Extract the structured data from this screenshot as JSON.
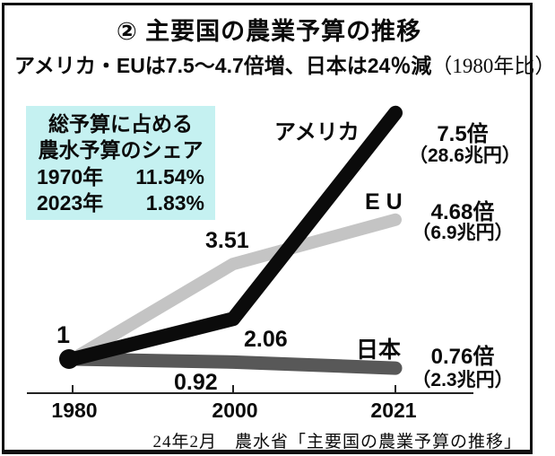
{
  "header": {
    "title": "② 主要国の農業予算の推移",
    "subtitle": "アメリカ・EUは7.5〜4.7倍増、日本は24％減",
    "subtitle_note": "（1980年比）"
  },
  "info_box": {
    "bg_color": "#c5f1f1",
    "heading_line1": "総予算に占める",
    "heading_line2": "農水予算のシェア",
    "rows": [
      {
        "year": "1970年",
        "value": "11.54%"
      },
      {
        "year": "2023年",
        "value": "1.83%"
      }
    ]
  },
  "chart_data": {
    "type": "line",
    "x": [
      1980,
      2000,
      2021
    ],
    "x_tick_labels": [
      "1980",
      "2000",
      "2021"
    ],
    "ylim": [
      0,
      8
    ],
    "grid": false,
    "baseline_value": 1,
    "legend_position": "inline-labels",
    "series": [
      {
        "name": "アメリカ",
        "values": [
          1,
          2.06,
          7.5
        ],
        "color": "#0b0b0b",
        "end_label": "7.5倍",
        "end_amount": "（28.6兆円）"
      },
      {
        "name": "EU",
        "values": [
          1,
          3.51,
          4.68
        ],
        "color": "#c4c4c4",
        "end_label": "4.68倍",
        "end_amount": "（6.9兆円）"
      },
      {
        "name": "日本",
        "values": [
          1,
          0.92,
          0.76
        ],
        "color": "#585858",
        "end_label": "0.76倍",
        "end_amount": "（2.3兆円）"
      }
    ],
    "point_labels": {
      "start": "1",
      "eu_2000": "3.51",
      "us_2000": "2.06",
      "jp_2000": "0.92"
    }
  },
  "footer": {
    "source": "24年2月　農水省「主要国の農業予算の推移」"
  }
}
